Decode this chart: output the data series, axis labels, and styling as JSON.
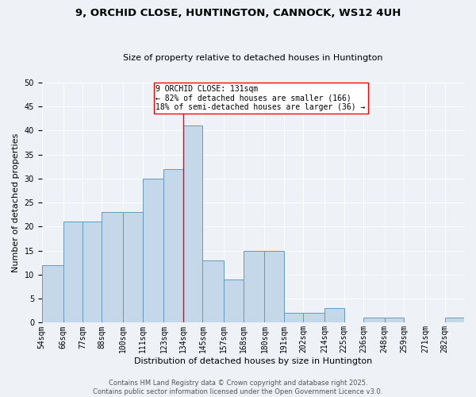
{
  "title": "9, ORCHID CLOSE, HUNTINGTON, CANNOCK, WS12 4UH",
  "subtitle": "Size of property relative to detached houses in Huntington",
  "xlabel": "Distribution of detached houses by size in Huntington",
  "ylabel": "Number of detached properties",
  "categories": [
    "54sqm",
    "66sqm",
    "77sqm",
    "88sqm",
    "100sqm",
    "111sqm",
    "123sqm",
    "134sqm",
    "145sqm",
    "157sqm",
    "168sqm",
    "180sqm",
    "191sqm",
    "202sqm",
    "214sqm",
    "225sqm",
    "236sqm",
    "248sqm",
    "259sqm",
    "271sqm",
    "282sqm"
  ],
  "bar_heights": [
    12,
    21,
    21,
    23,
    23,
    30,
    32,
    41,
    13,
    9,
    15,
    15,
    2,
    2,
    3,
    0,
    1,
    1,
    0,
    0,
    1
  ],
  "bar_color": "#c5d8ea",
  "bar_edge_color": "#6699bb",
  "bin_edges": [
    54,
    66,
    77,
    88,
    100,
    111,
    123,
    134,
    145,
    157,
    168,
    180,
    191,
    202,
    214,
    225,
    236,
    248,
    259,
    271,
    282,
    293
  ],
  "ref_line_x": 134,
  "annotation_title": "9 ORCHID CLOSE: 131sqm",
  "annotation_line1": "← 82% of detached houses are smaller (166)",
  "annotation_line2": "18% of semi-detached houses are larger (36) →",
  "ylim": [
    0,
    50
  ],
  "yticks": [
    0,
    5,
    10,
    15,
    20,
    25,
    30,
    35,
    40,
    45,
    50
  ],
  "footer_line1": "Contains HM Land Registry data © Crown copyright and database right 2025.",
  "footer_line2": "Contains public sector information licensed under the Open Government Licence v3.0.",
  "bg_color": "#eef2f7",
  "plot_bg_color": "#eef2f7",
  "title_fontsize": 9.5,
  "subtitle_fontsize": 8,
  "axis_label_fontsize": 8,
  "tick_fontsize": 7,
  "footer_fontsize": 6
}
